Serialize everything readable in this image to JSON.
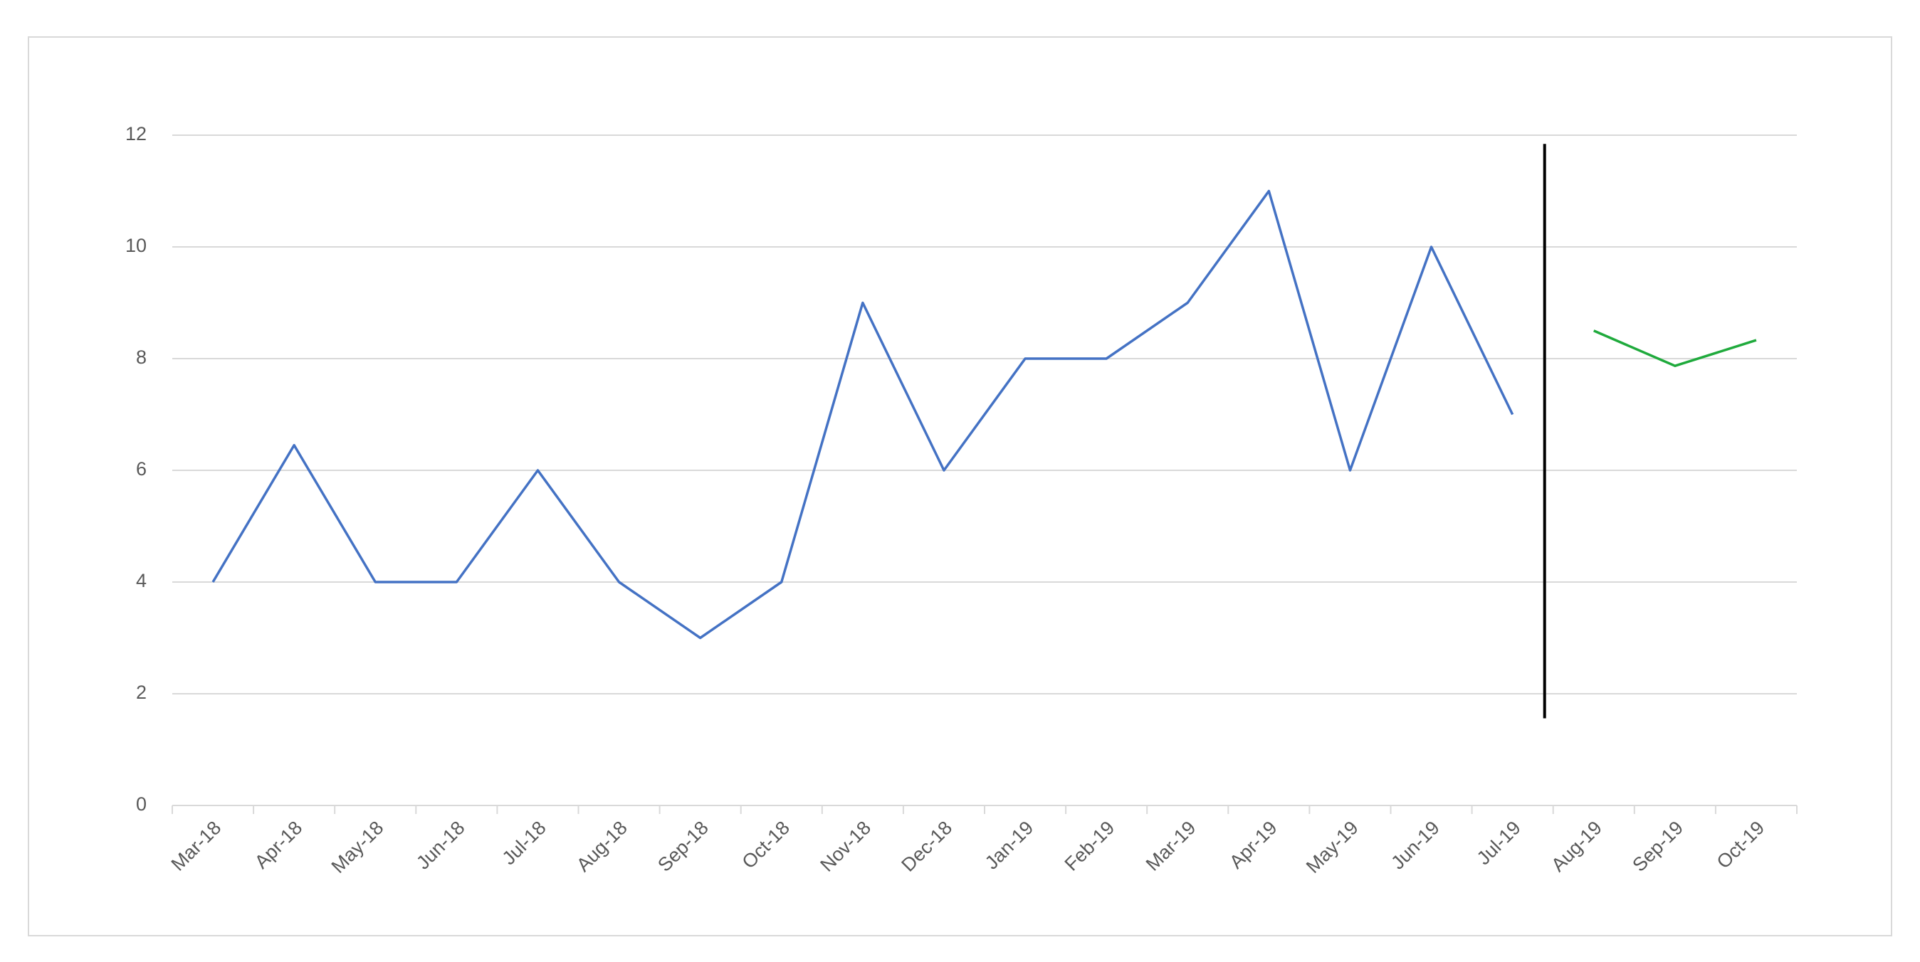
{
  "chart_data": {
    "type": "line",
    "categories": [
      "Mar-18",
      "Apr-18",
      "May-18",
      "Jun-18",
      "Jul-18",
      "Aug-18",
      "Sep-18",
      "Oct-18",
      "Nov-18",
      "Dec-18",
      "Jan-19",
      "Feb-19",
      "Mar-19",
      "Apr-19",
      "May-19",
      "Jun-19",
      "Jul-19",
      "Aug-19",
      "Sep-19",
      "Oct-19"
    ],
    "series": [
      {
        "color": "#4472c4",
        "values": [
          4,
          6.45,
          4,
          4,
          6,
          4,
          3,
          4,
          9,
          6,
          8,
          8,
          9,
          11,
          6,
          10,
          7,
          null,
          null,
          null
        ]
      },
      {
        "color": "#1faa3c",
        "values": [
          null,
          null,
          null,
          null,
          null,
          null,
          null,
          null,
          null,
          null,
          null,
          null,
          null,
          null,
          null,
          null,
          null,
          8.5,
          7.87,
          8.33
        ]
      }
    ],
    "ylim": [
      0,
      12
    ],
    "yticks": [
      0,
      2,
      4,
      6,
      8,
      10,
      12
    ],
    "grid": true
  }
}
